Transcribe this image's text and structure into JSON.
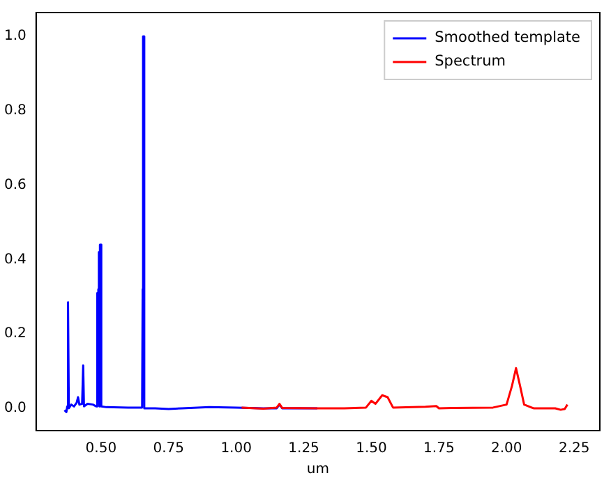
{
  "chart_data": {
    "type": "line",
    "xlabel": "um",
    "xlim": [
      0.26,
      2.345
    ],
    "xticks": [
      {
        "value": 0.5,
        "label": "0.50"
      },
      {
        "value": 0.75,
        "label": "0.75"
      },
      {
        "value": 1.0,
        "label": "1.00"
      },
      {
        "value": 1.25,
        "label": "1.25"
      },
      {
        "value": 1.5,
        "label": "1.50"
      },
      {
        "value": 1.75,
        "label": "1.75"
      },
      {
        "value": 2.0,
        "label": "2.00"
      },
      {
        "value": 2.25,
        "label": "2.25"
      }
    ],
    "ylim": [
      -0.06,
      1.064
    ],
    "yticks": [
      {
        "value": 0,
        "label": "0.0"
      },
      {
        "value": 0.2,
        "label": "0.2"
      },
      {
        "value": 0.4,
        "label": "0.4"
      },
      {
        "value": 0.6,
        "label": "0.6"
      },
      {
        "value": 0.8,
        "label": "0.8"
      },
      {
        "value": 1,
        "label": "1.0"
      }
    ],
    "grid": false,
    "legend": "top right",
    "marker": "none",
    "line_style": "solid",
    "series": [
      {
        "name": "Smoothed template",
        "color": "#0000ff",
        "x": [
          0.365,
          0.372,
          0.375,
          0.378,
          0.381,
          0.39,
          0.4,
          0.41,
          0.415,
          0.42,
          0.43,
          0.434,
          0.437,
          0.45,
          0.47,
          0.483,
          0.485,
          0.487,
          0.49,
          0.492,
          0.494,
          0.496,
          0.498,
          0.501,
          0.52,
          0.6,
          0.652,
          0.654,
          0.655,
          0.656,
          0.658,
          0.66,
          0.7,
          0.75,
          0.8,
          0.9,
          1.0,
          1.1,
          1.15,
          1.16,
          1.17,
          1.3
        ],
        "values": [
          -0.005,
          -0.01,
          0.005,
          0.285,
          0.0,
          0.01,
          0.005,
          0.015,
          0.03,
          0.01,
          0.012,
          0.115,
          0.005,
          0.012,
          0.01,
          0.005,
          0.31,
          0.005,
          0.32,
          0.42,
          0.005,
          0.44,
          0.44,
          0.005,
          0.003,
          0.002,
          0.002,
          0.32,
          0.25,
          1.0,
          1.0,
          0.0,
          0.0,
          -0.002,
          0.0,
          0.003,
          0.002,
          0.0,
          0.0,
          0.01,
          0.0,
          0.0
        ]
      },
      {
        "name": "Spectrum",
        "color": "#ff0000",
        "x": [
          1.02,
          1.1,
          1.15,
          1.16,
          1.17,
          1.3,
          1.4,
          1.48,
          1.5,
          1.515,
          1.54,
          1.56,
          1.58,
          1.7,
          1.74,
          1.75,
          1.8,
          1.95,
          2.0,
          2.02,
          2.035,
          2.05,
          2.065,
          2.1,
          2.18,
          2.2,
          2.215,
          2.225
        ],
        "values": [
          0.002,
          -0.001,
          0.002,
          0.012,
          0.001,
          0.0,
          0.0,
          0.002,
          0.02,
          0.012,
          0.035,
          0.03,
          0.002,
          0.004,
          0.006,
          0.0,
          0.001,
          0.002,
          0.01,
          0.06,
          0.108,
          0.06,
          0.01,
          0.0,
          0.0,
          -0.004,
          -0.002,
          0.01
        ]
      }
    ]
  }
}
